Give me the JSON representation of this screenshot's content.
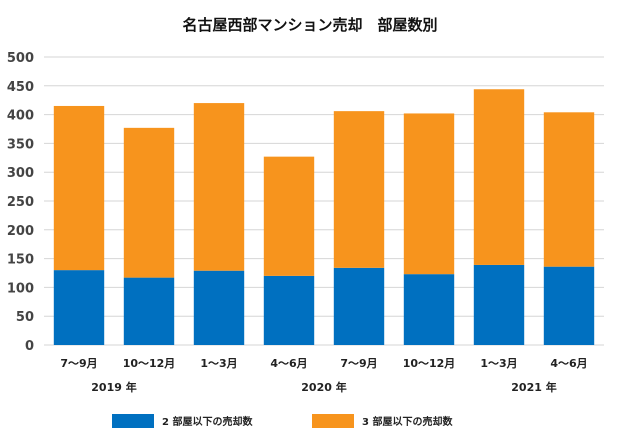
{
  "chart_data": {
    "type": "bar",
    "stacked": true,
    "title": "名古屋西部マンション売却　部屋数別",
    "categories": [
      "7～9月",
      "10～12月",
      "1～3月",
      "4～6月",
      "7～9月",
      "10～12月",
      "1～3月",
      "4～6月"
    ],
    "year_groups": [
      {
        "label": "2019 年",
        "categories": [
          0,
          1
        ]
      },
      {
        "label": "2020 年",
        "categories": [
          2,
          3,
          4,
          5
        ]
      },
      {
        "label": "2021 年",
        "categories": [
          6,
          7
        ]
      }
    ],
    "series": [
      {
        "name": "2 部屋以下の売却数",
        "color": "#0070c0",
        "values": [
          130,
          117,
          129,
          120,
          134,
          123,
          139,
          136
        ]
      },
      {
        "name": "3 部屋以下の売却数",
        "color": "#f7941d",
        "values": [
          285,
          260,
          291,
          207,
          272,
          279,
          305,
          268
        ]
      }
    ],
    "ylim": [
      0,
      500
    ],
    "yticks": [
      0,
      50,
      100,
      150,
      200,
      250,
      300,
      350,
      400,
      450,
      500
    ],
    "xlabel": "",
    "ylabel": "",
    "grid": true,
    "legend_position": "bottom"
  }
}
